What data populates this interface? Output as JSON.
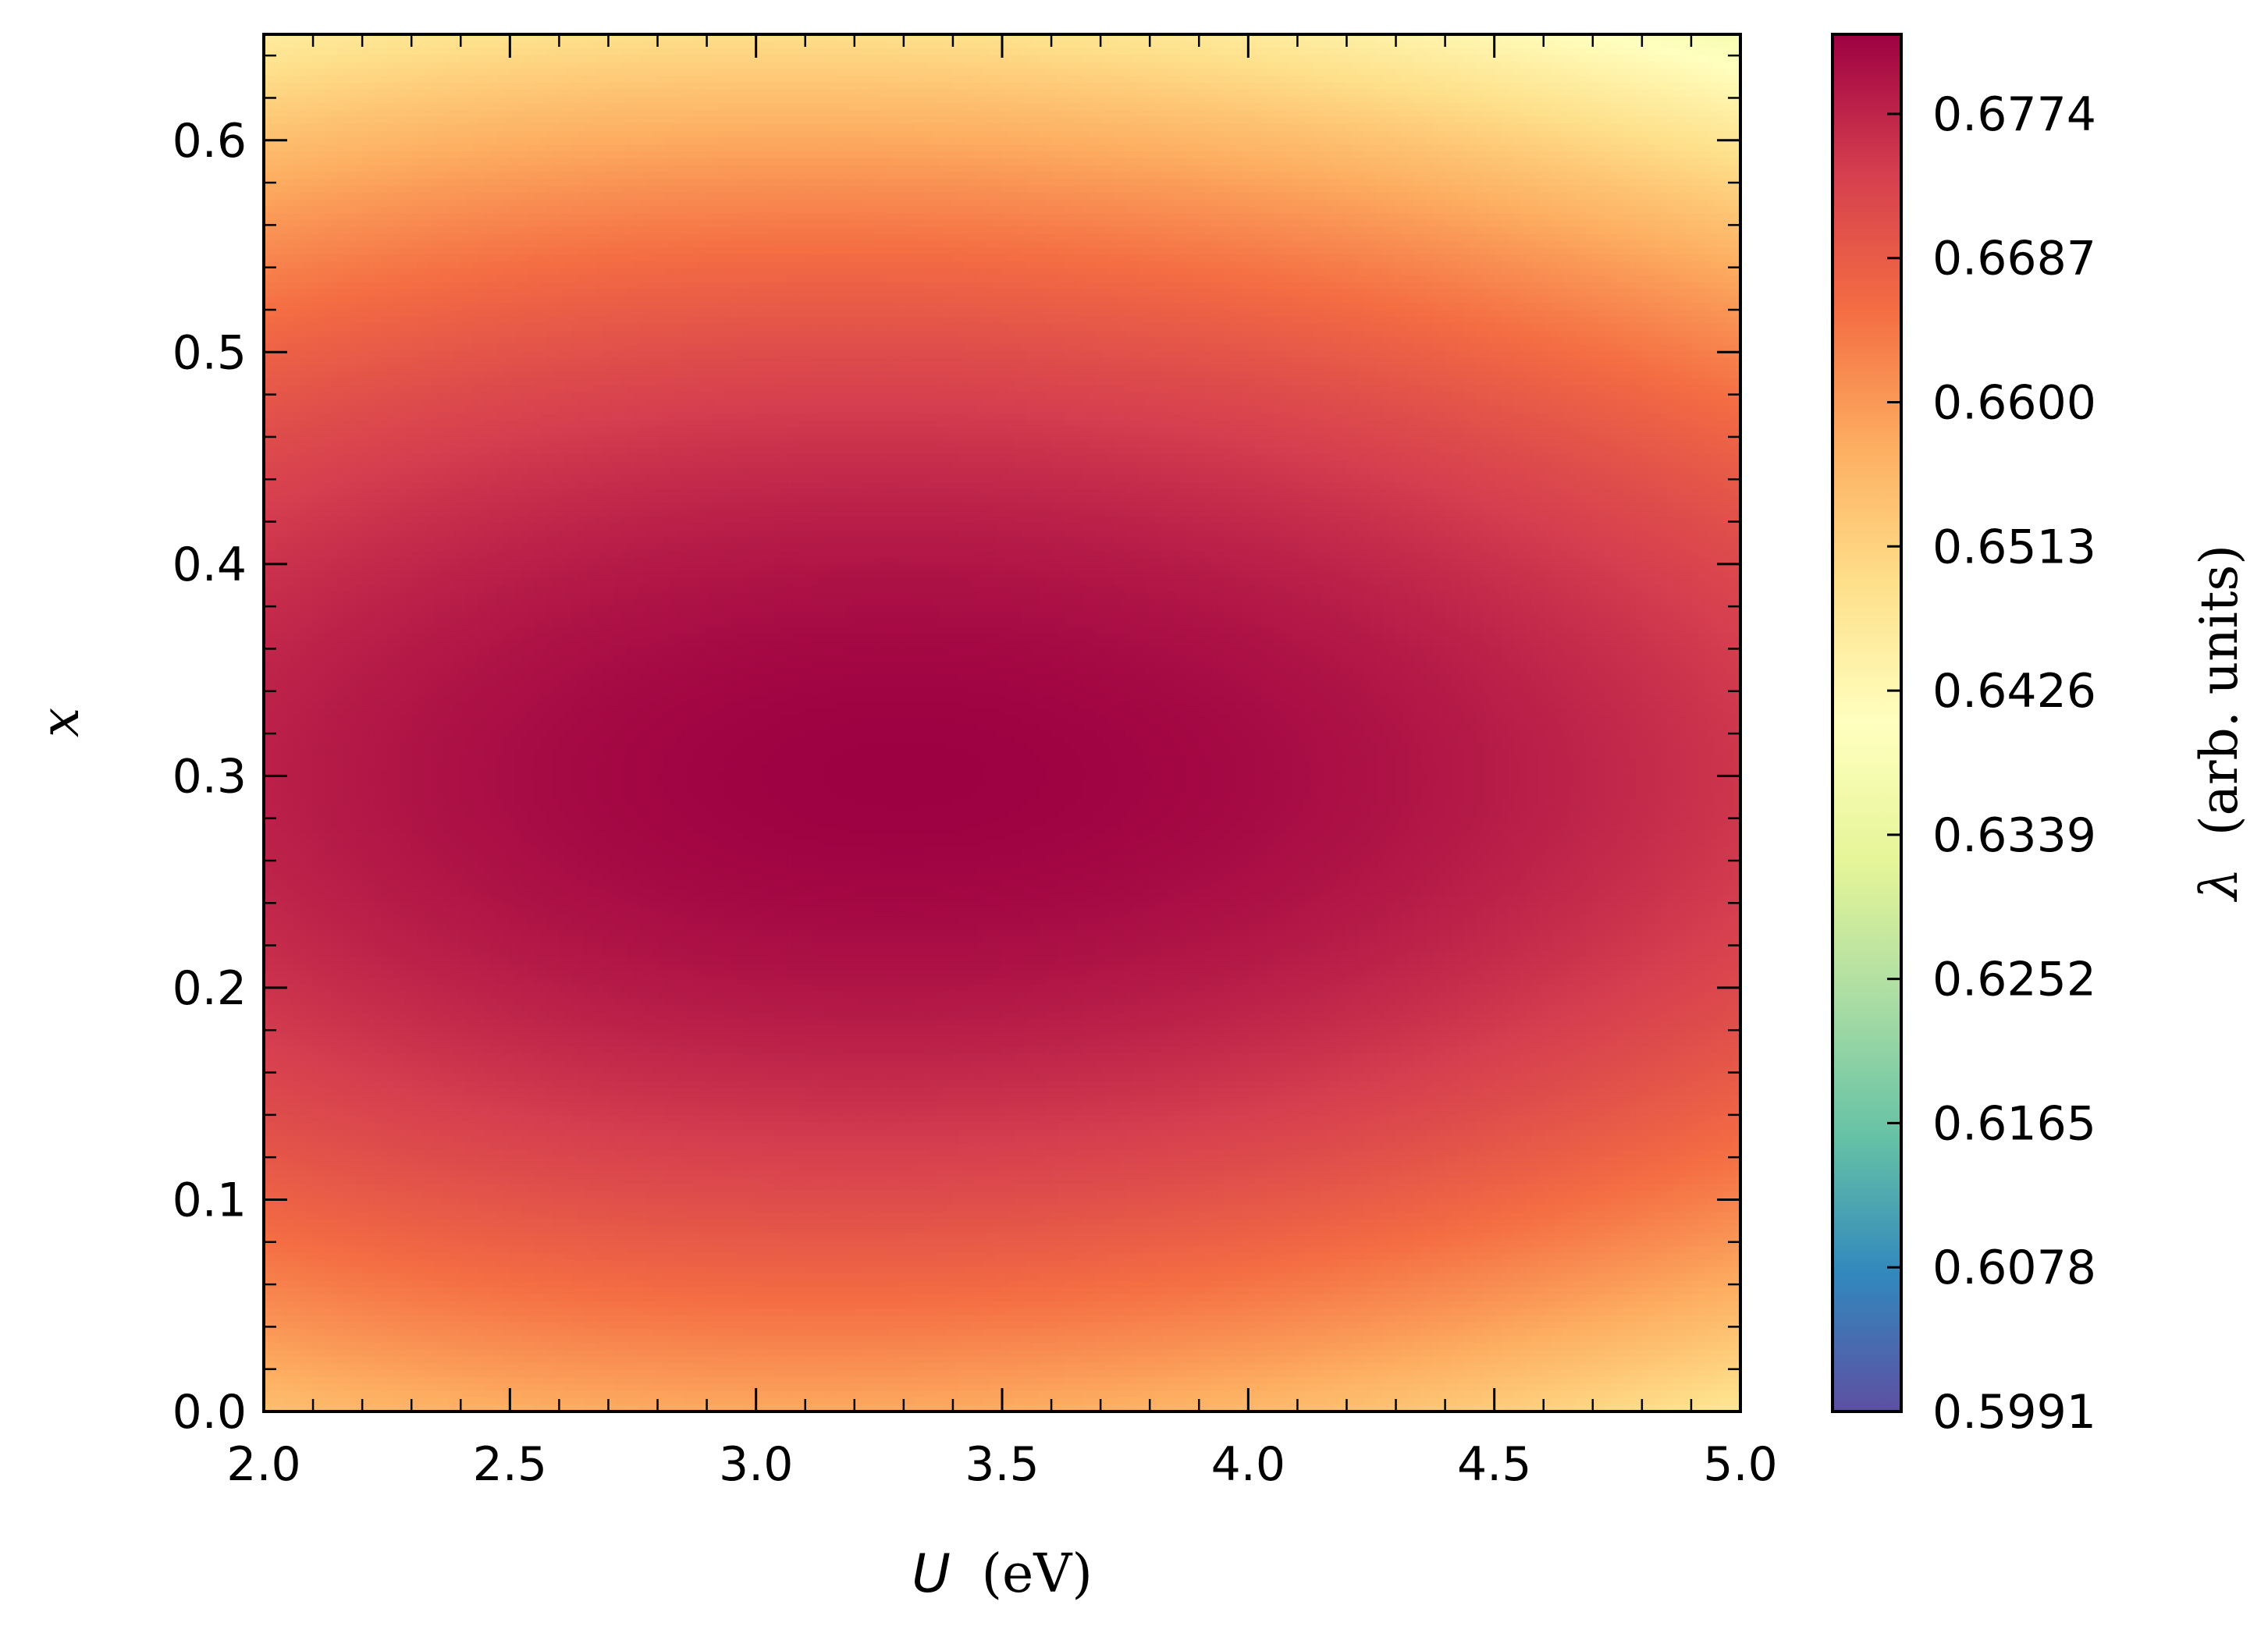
{
  "chart_data": {
    "type": "heatmap",
    "xlabel": {
      "var": "U",
      "unit": "(eV)"
    },
    "ylabel": "x",
    "x_range": [
      2.0,
      5.0
    ],
    "y_range": [
      0.0,
      0.65
    ],
    "x_ticks": [
      "2.0",
      "2.5",
      "3.0",
      "3.5",
      "4.0",
      "4.5",
      "5.0"
    ],
    "x_tick_values": [
      2.0,
      2.5,
      3.0,
      3.5,
      4.0,
      4.5,
      5.0
    ],
    "y_ticks": [
      "0.0",
      "0.1",
      "0.2",
      "0.3",
      "0.4",
      "0.5",
      "0.6"
    ],
    "y_tick_values": [
      0.0,
      0.1,
      0.2,
      0.3,
      0.4,
      0.5,
      0.6
    ],
    "colorbar": {
      "label": {
        "symbol": "λ",
        "text": "(arb. units)"
      },
      "min": 0.5991,
      "max": 0.6822,
      "ticks": [
        "0.5991",
        "0.6078",
        "0.6165",
        "0.6252",
        "0.6339",
        "0.6426",
        "0.6513",
        "0.6600",
        "0.6687",
        "0.6774"
      ],
      "tick_values": [
        0.5991,
        0.6078,
        0.6165,
        0.6252,
        0.6339,
        0.6426,
        0.6513,
        0.66,
        0.6687,
        0.6774
      ],
      "colormap": "Spectral_r",
      "colormap_stops": [
        "#5e4fa2",
        "#3288bd",
        "#66c2a5",
        "#abdda4",
        "#e6f598",
        "#ffffbf",
        "#fee08b",
        "#fdae61",
        "#f46d43",
        "#d53e4f",
        "#9e0142"
      ]
    },
    "field": {
      "description_of_values": "lambda(U, x) sampled on a grid",
      "U": [
        2.0,
        2.25,
        2.5,
        2.75,
        3.0,
        3.25,
        3.5,
        3.75,
        4.0,
        4.25,
        4.5,
        4.75,
        5.0
      ],
      "x": [
        0.0,
        0.05,
        0.1,
        0.15,
        0.2,
        0.25,
        0.3,
        0.35,
        0.4,
        0.45,
        0.5,
        0.55,
        0.6,
        0.65
      ],
      "peak": {
        "U": 3.3,
        "x": 0.3,
        "value": 0.6822
      }
    },
    "grid": false,
    "legend": "none"
  }
}
